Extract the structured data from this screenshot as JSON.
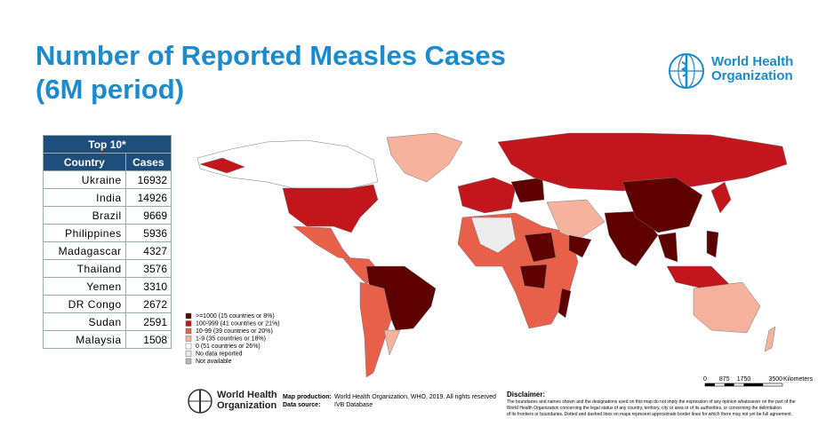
{
  "header": {
    "title": [
      "Number of Reported Measles Cases",
      "(6M period)"
    ],
    "logo": [
      "World Health",
      "Organization"
    ]
  },
  "table": {
    "title": "Top 10*",
    "columns": [
      "Country",
      "Cases"
    ],
    "rows": [
      [
        "Ukraine",
        16932
      ],
      [
        "India",
        14926
      ],
      [
        "Brazil",
        9669
      ],
      [
        "Philippines",
        5936
      ],
      [
        "Madagascar",
        4327
      ],
      [
        "Thailand",
        3576
      ],
      [
        "Yemen",
        3310
      ],
      [
        "DR Congo",
        2672
      ],
      [
        "Sudan",
        2591
      ],
      [
        "Malaysia",
        1508
      ]
    ]
  },
  "map": {
    "legend": [
      {
        "label": ">=1000 (15 countries or 8%)",
        "color": "#5e0000"
      },
      {
        "label": "100-999 (41 countries or 21%)",
        "color": "#c3161c"
      },
      {
        "label": "10-99 (39 countries or 20%)",
        "color": "#e9604a"
      },
      {
        "label": "1-9 (35 countries or 18%)",
        "color": "#f5b39d"
      },
      {
        "label": "0 (51 countries or 26%)",
        "color": "#ffffff"
      },
      {
        "label": "No data reported",
        "color": "#ececec"
      },
      {
        "label": "Not available",
        "color": "#b9b9b9"
      }
    ],
    "scale": {
      "ticks": [
        0,
        875,
        1750,
        3500
      ],
      "unit": "Kilometers"
    }
  },
  "footer": {
    "logo": [
      "World Health",
      "Organization"
    ],
    "production_label": "Map production:",
    "production": "World Health Organization, WHO, 2019. All rights reserved",
    "source_label": "Data source:",
    "source": "IVB Database",
    "disclaimer_title": "Disclaimer:",
    "disclaimer": [
      "The boundaries and names shown and the designations used on this map do not imply the expression of any opinion whatsoever on the part of the",
      "World Health Organization concerning the legal status of any country, territory, city or area or of its authorities, or concerning the delimitation",
      "of its frontiers or boundaries. Dotted and dashed lines on maps represent approximate border lines for which there may not yet be full agreement."
    ]
  }
}
